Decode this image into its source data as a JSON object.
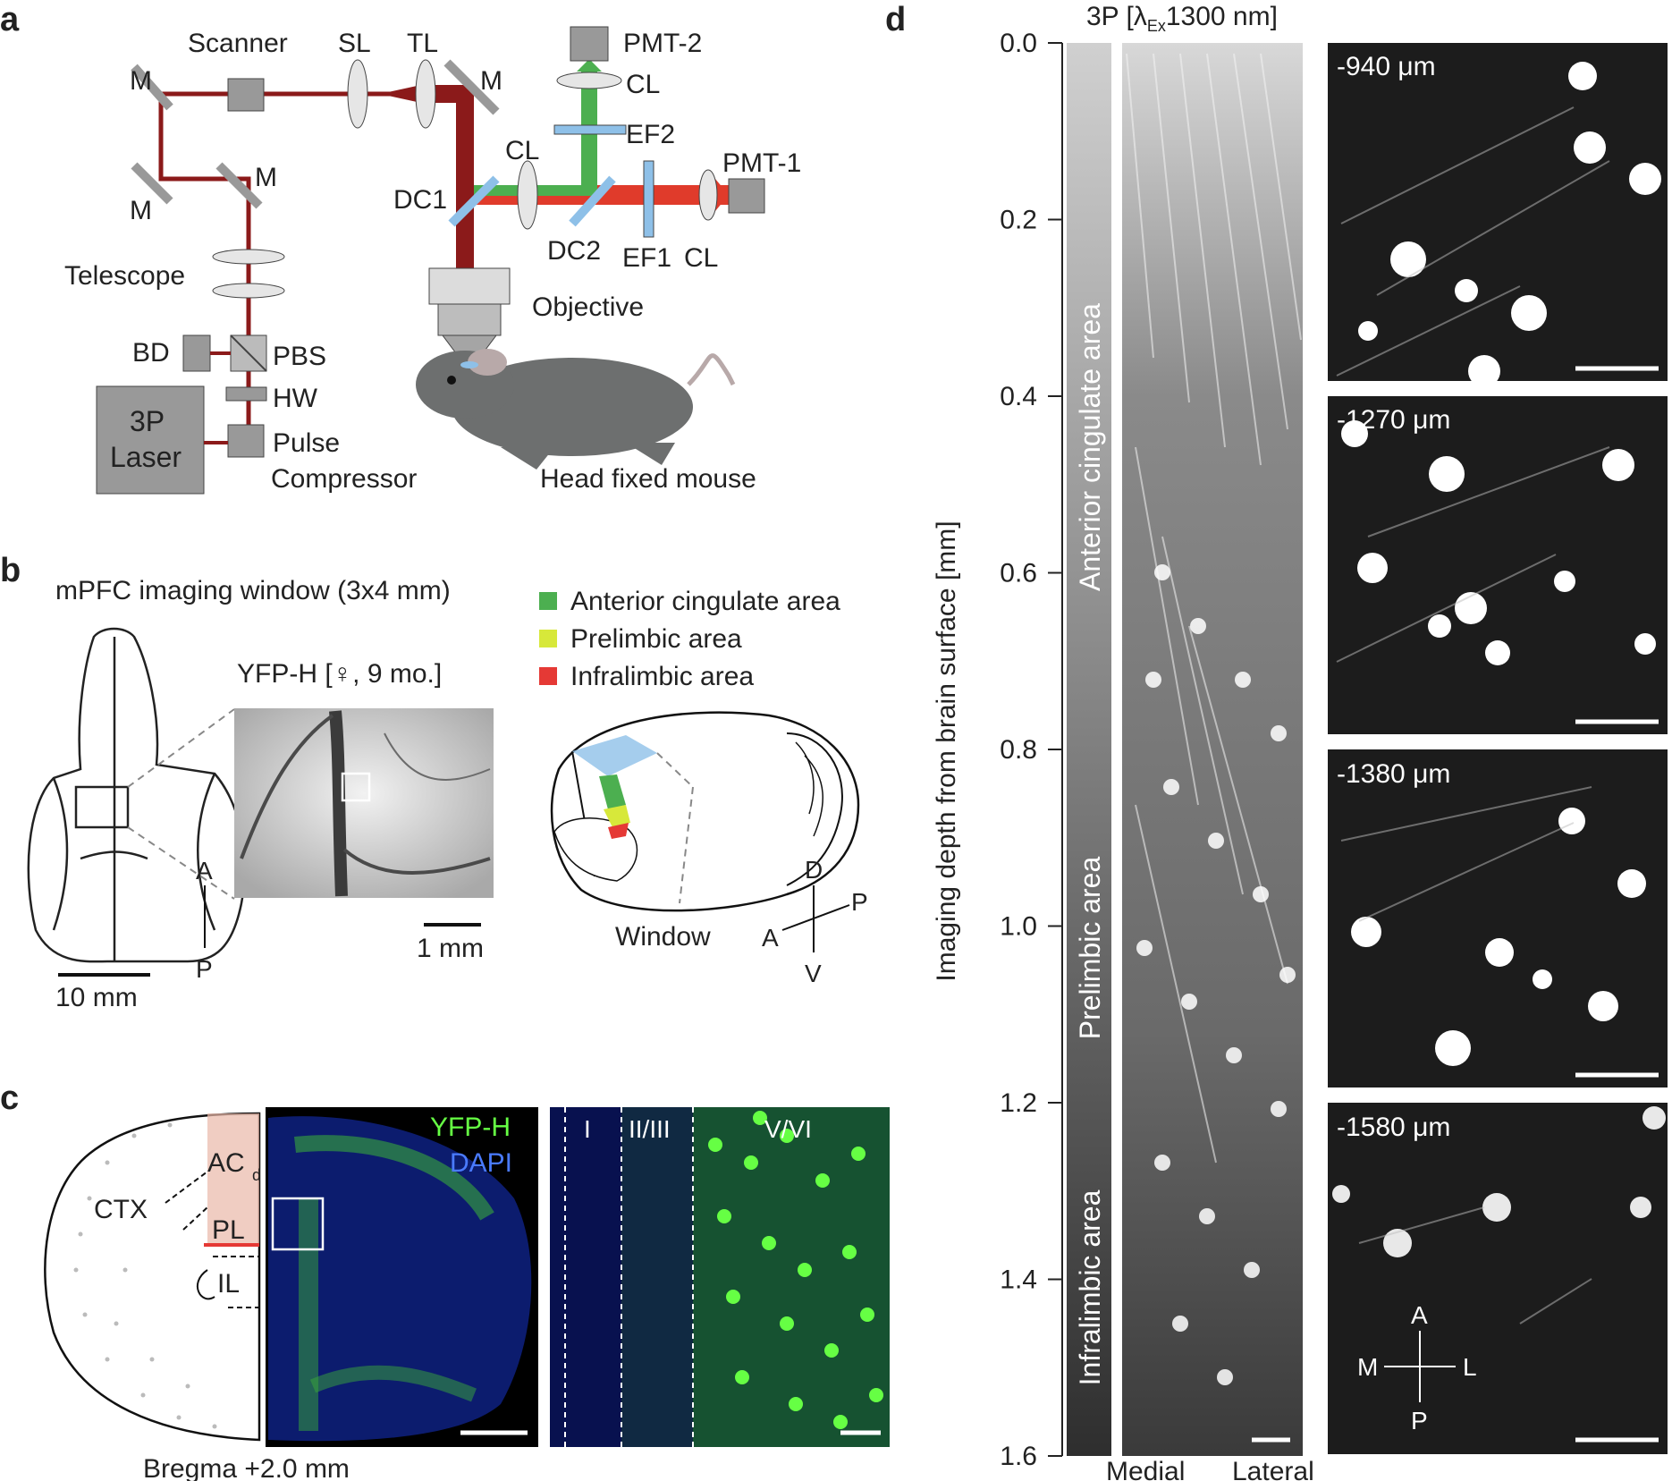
{
  "panel_letters": {
    "a": "a",
    "b": "b",
    "c": "c",
    "d": "d"
  },
  "panel_a": {
    "scanner": "Scanner",
    "sl": "SL",
    "tl": "TL",
    "m": "M",
    "pmt2": "PMT-2",
    "cl": "CL",
    "ef2": "EF2",
    "dc1": "DC1",
    "dc2": "DC2",
    "ef1": "EF1",
    "pmt1": "PMT-1",
    "telescope": "Telescope",
    "objective": "Objective",
    "bd": "BD",
    "pbs": "PBS",
    "hw": "HW",
    "laser_line1": "3P",
    "laser_line2": "Laser",
    "pulse": "Pulse",
    "compressor": "Compressor",
    "mouse": "Head fixed mouse"
  },
  "panel_b": {
    "title": "mPFC imaging window (3x4 mm)",
    "yfp": "YFP-H  [♀, 9 mo.]",
    "legend": [
      {
        "label": "Anterior cingulate area",
        "color": "#4caf50"
      },
      {
        "label": "Prelimbic area",
        "color": "#d7e83a"
      },
      {
        "label": "Infralimbic area",
        "color": "#e53935"
      }
    ],
    "scale_skull": "10 mm",
    "scale_window": "1 mm",
    "dir_a": "A",
    "dir_p": "P",
    "dir_d": "D",
    "dir_v": "V",
    "window": "Window"
  },
  "panel_c": {
    "acd": "AC",
    "acd_sub": "d",
    "pl": "PL",
    "il": "IL",
    "ctx": "CTX",
    "yfp": "YFP-H",
    "dapi": "DAPI",
    "bregma": "Bregma +2.0 mm",
    "layers": [
      "I",
      "II/III",
      "V/VI"
    ],
    "colors": {
      "yfp": "#66ff44",
      "dapi": "#4a7bff"
    }
  },
  "panel_d": {
    "title_pre": "3P [λ",
    "title_sub": "Ex",
    "title_post": "1300 nm]",
    "ylabel": "Imaging depth from brain surface [mm]",
    "ticks": [
      "0.0",
      "0.2",
      "0.4",
      "0.6",
      "0.8",
      "1.0",
      "1.2",
      "1.4",
      "1.6"
    ],
    "areas": [
      "Anterior cingulate area",
      "Prelimbic area",
      "Infralimbic area"
    ],
    "medial": "Medial",
    "lateral": "Lateral",
    "depths": [
      "-940 μm",
      "-1270 μm",
      "-1380 μm",
      "-1580 μm"
    ],
    "orient": {
      "a": "A",
      "p": "P",
      "m": "M",
      "l": "L"
    }
  }
}
